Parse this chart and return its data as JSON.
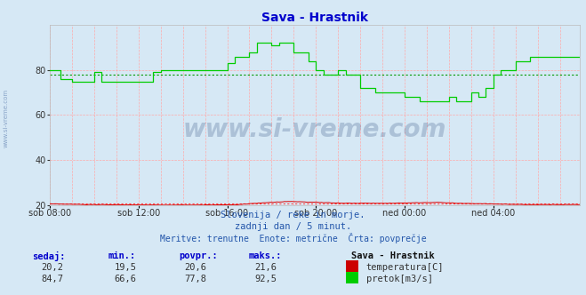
{
  "title": "Sava - Hrastnik",
  "title_color": "#0000cc",
  "bg_color": "#d6e8f5",
  "plot_bg_color": "#d6e8f5",
  "grid_color": "#ff9999",
  "ylabel_left_range": [
    20,
    100
  ],
  "yticks": [
    20,
    40,
    60,
    80
  ],
  "x_labels": [
    "sob 08:00",
    "sob 12:00",
    "sob 16:00",
    "sob 20:00",
    "ned 00:00",
    "ned 04:00"
  ],
  "n_points": 288,
  "temp_color": "#dd0000",
  "temp_avg_color": "#ff4444",
  "flow_color": "#00cc00",
  "flow_avg_color": "#009900",
  "temp_avg": 20.6,
  "flow_avg": 77.8,
  "subtitle1": "Slovenija / reke in morje.",
  "subtitle2": "zadnji dan / 5 minut.",
  "subtitle3": "Meritve: trenutne  Enote: metrične  Črta: povprečje",
  "legend_title": "Sava - Hrastnik",
  "legend_temp_label": "temperatura[C]",
  "legend_flow_label": "pretok[m3/s]",
  "watermark": "www.si-vreme.com",
  "footer_headers": [
    "sedaj:",
    "min.:",
    "povpr.:",
    "maks.:"
  ],
  "footer_temp_values": [
    "20,2",
    "19,5",
    "20,6",
    "21,6"
  ],
  "footer_flow_values": [
    "84,7",
    "66,6",
    "77,8",
    "92,5"
  ],
  "side_watermark": "www.si-vreme.com",
  "flow_keypoints": [
    [
      0,
      80
    ],
    [
      6,
      80
    ],
    [
      6,
      76
    ],
    [
      12,
      76
    ],
    [
      12,
      75
    ],
    [
      24,
      75
    ],
    [
      24,
      79
    ],
    [
      28,
      79
    ],
    [
      28,
      75
    ],
    [
      48,
      75
    ],
    [
      48,
      75
    ],
    [
      56,
      75
    ],
    [
      56,
      79
    ],
    [
      60,
      79
    ],
    [
      60,
      80
    ],
    [
      96,
      80
    ],
    [
      96,
      83
    ],
    [
      100,
      83
    ],
    [
      100,
      86
    ],
    [
      108,
      86
    ],
    [
      108,
      88
    ],
    [
      112,
      88
    ],
    [
      112,
      92
    ],
    [
      120,
      92
    ],
    [
      120,
      91
    ],
    [
      124,
      91
    ],
    [
      124,
      92
    ],
    [
      132,
      92
    ],
    [
      132,
      88
    ],
    [
      140,
      88
    ],
    [
      140,
      84
    ],
    [
      144,
      84
    ],
    [
      144,
      80
    ],
    [
      148,
      80
    ],
    [
      148,
      78
    ],
    [
      156,
      78
    ],
    [
      156,
      80
    ],
    [
      160,
      80
    ],
    [
      160,
      78
    ],
    [
      168,
      78
    ],
    [
      168,
      72
    ],
    [
      176,
      72
    ],
    [
      176,
      70
    ],
    [
      192,
      70
    ],
    [
      192,
      68
    ],
    [
      200,
      68
    ],
    [
      200,
      66
    ],
    [
      216,
      66
    ],
    [
      216,
      68
    ],
    [
      220,
      68
    ],
    [
      220,
      66
    ],
    [
      228,
      66
    ],
    [
      228,
      70
    ],
    [
      232,
      70
    ],
    [
      232,
      68
    ],
    [
      236,
      68
    ],
    [
      236,
      72
    ],
    [
      240,
      72
    ],
    [
      240,
      78
    ],
    [
      244,
      78
    ],
    [
      244,
      80
    ],
    [
      252,
      80
    ],
    [
      252,
      84
    ],
    [
      260,
      84
    ],
    [
      260,
      86
    ],
    [
      287,
      86
    ]
  ],
  "temp_keypoints": [
    [
      0,
      20.5
    ],
    [
      20,
      20.2
    ],
    [
      40,
      20.1
    ],
    [
      60,
      20.0
    ],
    [
      80,
      20.0
    ],
    [
      100,
      20.1
    ],
    [
      120,
      21.2
    ],
    [
      128,
      21.5
    ],
    [
      130,
      21.6
    ],
    [
      140,
      21.3
    ],
    [
      160,
      20.8
    ],
    [
      180,
      20.8
    ],
    [
      200,
      21.0
    ],
    [
      210,
      21.2
    ],
    [
      220,
      20.8
    ],
    [
      240,
      20.5
    ],
    [
      250,
      20.3
    ],
    [
      260,
      20.2
    ],
    [
      280,
      20.2
    ],
    [
      287,
      20.2
    ]
  ]
}
